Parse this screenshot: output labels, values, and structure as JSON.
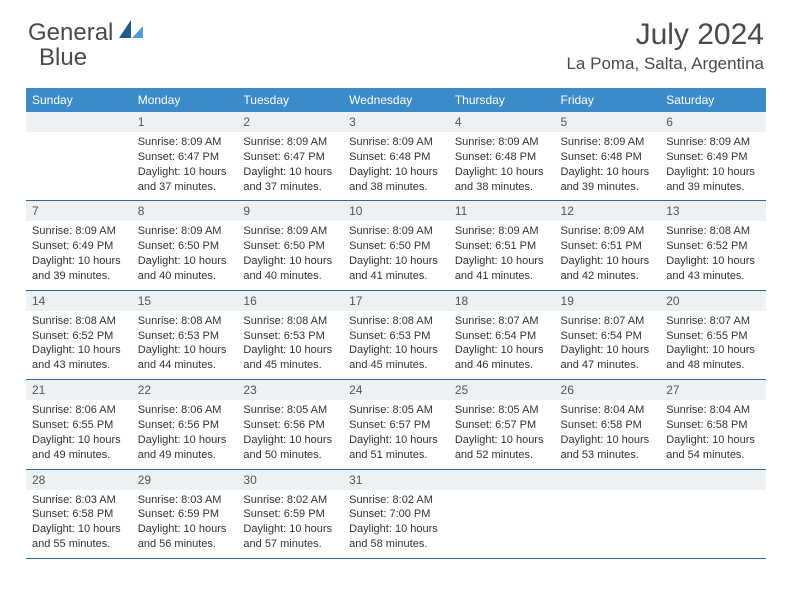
{
  "brand": {
    "name_part1": "General",
    "name_part2": "Blue"
  },
  "title": {
    "month": "July 2024",
    "location": "La Poma, Salta, Argentina"
  },
  "colors": {
    "header_bg": "#3b8bc9",
    "daynum_bg": "#eef1f3",
    "border": "#2d6aa0",
    "text": "#333333",
    "logo_dark": "#1f5a8a",
    "logo_light": "#4f9bd9"
  },
  "weekdays": [
    "Sunday",
    "Monday",
    "Tuesday",
    "Wednesday",
    "Thursday",
    "Friday",
    "Saturday"
  ],
  "weeks": [
    [
      null,
      {
        "n": "1",
        "sr": "8:09 AM",
        "ss": "6:47 PM",
        "dl": "10 hours and 37 minutes."
      },
      {
        "n": "2",
        "sr": "8:09 AM",
        "ss": "6:47 PM",
        "dl": "10 hours and 37 minutes."
      },
      {
        "n": "3",
        "sr": "8:09 AM",
        "ss": "6:48 PM",
        "dl": "10 hours and 38 minutes."
      },
      {
        "n": "4",
        "sr": "8:09 AM",
        "ss": "6:48 PM",
        "dl": "10 hours and 38 minutes."
      },
      {
        "n": "5",
        "sr": "8:09 AM",
        "ss": "6:48 PM",
        "dl": "10 hours and 39 minutes."
      },
      {
        "n": "6",
        "sr": "8:09 AM",
        "ss": "6:49 PM",
        "dl": "10 hours and 39 minutes."
      }
    ],
    [
      {
        "n": "7",
        "sr": "8:09 AM",
        "ss": "6:49 PM",
        "dl": "10 hours and 39 minutes."
      },
      {
        "n": "8",
        "sr": "8:09 AM",
        "ss": "6:50 PM",
        "dl": "10 hours and 40 minutes."
      },
      {
        "n": "9",
        "sr": "8:09 AM",
        "ss": "6:50 PM",
        "dl": "10 hours and 40 minutes."
      },
      {
        "n": "10",
        "sr": "8:09 AM",
        "ss": "6:50 PM",
        "dl": "10 hours and 41 minutes."
      },
      {
        "n": "11",
        "sr": "8:09 AM",
        "ss": "6:51 PM",
        "dl": "10 hours and 41 minutes."
      },
      {
        "n": "12",
        "sr": "8:09 AM",
        "ss": "6:51 PM",
        "dl": "10 hours and 42 minutes."
      },
      {
        "n": "13",
        "sr": "8:08 AM",
        "ss": "6:52 PM",
        "dl": "10 hours and 43 minutes."
      }
    ],
    [
      {
        "n": "14",
        "sr": "8:08 AM",
        "ss": "6:52 PM",
        "dl": "10 hours and 43 minutes."
      },
      {
        "n": "15",
        "sr": "8:08 AM",
        "ss": "6:53 PM",
        "dl": "10 hours and 44 minutes."
      },
      {
        "n": "16",
        "sr": "8:08 AM",
        "ss": "6:53 PM",
        "dl": "10 hours and 45 minutes."
      },
      {
        "n": "17",
        "sr": "8:08 AM",
        "ss": "6:53 PM",
        "dl": "10 hours and 45 minutes."
      },
      {
        "n": "18",
        "sr": "8:07 AM",
        "ss": "6:54 PM",
        "dl": "10 hours and 46 minutes."
      },
      {
        "n": "19",
        "sr": "8:07 AM",
        "ss": "6:54 PM",
        "dl": "10 hours and 47 minutes."
      },
      {
        "n": "20",
        "sr": "8:07 AM",
        "ss": "6:55 PM",
        "dl": "10 hours and 48 minutes."
      }
    ],
    [
      {
        "n": "21",
        "sr": "8:06 AM",
        "ss": "6:55 PM",
        "dl": "10 hours and 49 minutes."
      },
      {
        "n": "22",
        "sr": "8:06 AM",
        "ss": "6:56 PM",
        "dl": "10 hours and 49 minutes."
      },
      {
        "n": "23",
        "sr": "8:05 AM",
        "ss": "6:56 PM",
        "dl": "10 hours and 50 minutes."
      },
      {
        "n": "24",
        "sr": "8:05 AM",
        "ss": "6:57 PM",
        "dl": "10 hours and 51 minutes."
      },
      {
        "n": "25",
        "sr": "8:05 AM",
        "ss": "6:57 PM",
        "dl": "10 hours and 52 minutes."
      },
      {
        "n": "26",
        "sr": "8:04 AM",
        "ss": "6:58 PM",
        "dl": "10 hours and 53 minutes."
      },
      {
        "n": "27",
        "sr": "8:04 AM",
        "ss": "6:58 PM",
        "dl": "10 hours and 54 minutes."
      }
    ],
    [
      {
        "n": "28",
        "sr": "8:03 AM",
        "ss": "6:58 PM",
        "dl": "10 hours and 55 minutes."
      },
      {
        "n": "29",
        "sr": "8:03 AM",
        "ss": "6:59 PM",
        "dl": "10 hours and 56 minutes."
      },
      {
        "n": "30",
        "sr": "8:02 AM",
        "ss": "6:59 PM",
        "dl": "10 hours and 57 minutes."
      },
      {
        "n": "31",
        "sr": "8:02 AM",
        "ss": "7:00 PM",
        "dl": "10 hours and 58 minutes."
      },
      null,
      null,
      null
    ]
  ],
  "labels": {
    "sunrise": "Sunrise:",
    "sunset": "Sunset:",
    "daylight": "Daylight:"
  }
}
